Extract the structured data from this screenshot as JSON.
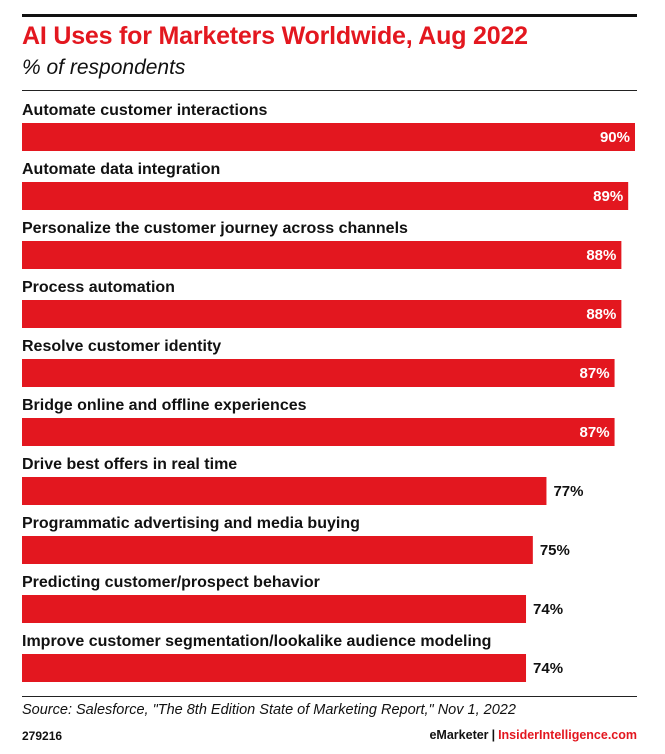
{
  "header": {
    "title": "AI Uses for Marketers Worldwide, Aug 2022",
    "subtitle": "% of respondents"
  },
  "colors": {
    "bar": "#e3171f",
    "accent": "#e3171f",
    "text": "#111111"
  },
  "chart_data": {
    "type": "bar",
    "orientation": "horizontal",
    "title": "AI Uses for Marketers Worldwide, Aug 2022",
    "subtitle": "% of respondents",
    "xlabel": "",
    "ylabel": "",
    "grid": false,
    "categories": [
      "Automate customer interactions",
      "Automate data integration",
      "Personalize the customer journey across channels",
      "Process automation",
      "Resolve customer identity",
      "Bridge online and offline experiences",
      "Drive best offers in real time",
      "Programmatic advertising and media buying",
      "Predicting customer/prospect behavior",
      "Improve customer segmentation/lookalike audience modeling"
    ],
    "values": [
      90,
      89,
      88,
      88,
      87,
      87,
      77,
      75,
      74,
      74
    ],
    "value_labels": [
      "90%",
      "89%",
      "88%",
      "88%",
      "87%",
      "87%",
      "77%",
      "75%",
      "74%",
      "74%"
    ],
    "xlim": [
      0,
      90
    ]
  },
  "footer": {
    "source": "Source: Salesforce, \"The 8th Edition State of Marketing Report,\" Nov 1, 2022",
    "chart_id": "279216",
    "brand_left": "eMarketer",
    "brand_separator": "|",
    "brand_right": "InsiderIntelligence.com"
  }
}
